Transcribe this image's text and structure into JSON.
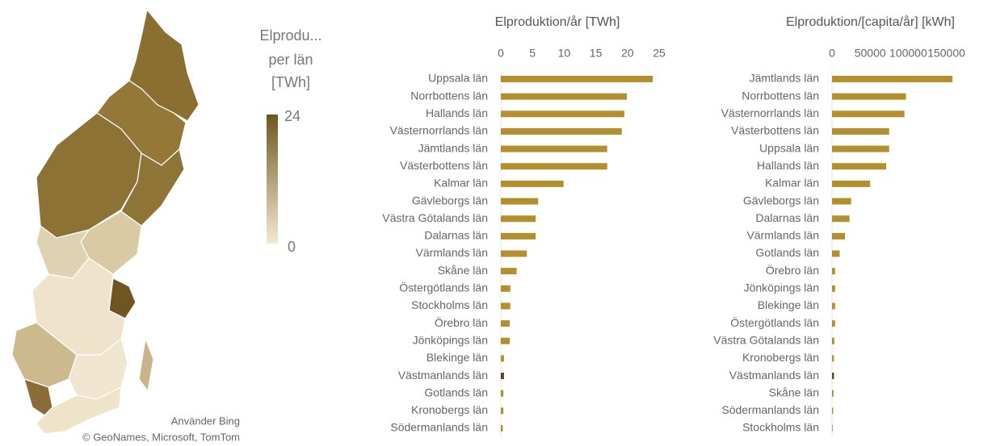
{
  "map": {
    "legend_title": [
      "Elprodu...",
      "per län",
      "[TWh]"
    ],
    "legend_max": 24,
    "legend_min": 0,
    "attribution": [
      "Använder Bing",
      "© GeoNames, Microsoft, TomTom"
    ]
  },
  "chart_data": [
    {
      "type": "hbar",
      "title": "Elproduktion/år [TWh]",
      "categories": [
        "Uppsala län",
        "Norrbottens län",
        "Hallands län",
        "Västernorrlands län",
        "Jämtlands län",
        "Västerbottens län",
        "Kalmar län",
        "Gävleborgs län",
        "Västra Götalands län",
        "Dalarnas län",
        "Värmlands län",
        "Skåne län",
        "Östergötlands län",
        "Stockholms län",
        "Örebro län",
        "Jönköpings län",
        "Blekinge län",
        "Västmanlands län",
        "Gotlands län",
        "Kronobergs län",
        "Södermanlands län"
      ],
      "values": [
        24.0,
        19.9,
        19.5,
        19.1,
        16.8,
        16.8,
        9.9,
        5.9,
        5.5,
        5.5,
        4.1,
        2.5,
        1.5,
        1.5,
        1.4,
        1.4,
        0.5,
        0.5,
        0.4,
        0.4,
        0.3
      ],
      "color": "#b38f2e",
      "highlight": {
        "category": "Västmanlands län",
        "color": "#5c4816"
      },
      "xlim": [
        0,
        25
      ],
      "xticks": [
        0,
        5,
        10,
        15,
        20,
        25
      ]
    },
    {
      "type": "hbar",
      "title": "Elproduktion/[capita/år] [kWh]",
      "categories": [
        "Jämtlands län",
        "Norrbottens län",
        "Västernorrlands län",
        "Västerbottens län",
        "Uppsala län",
        "Hallands län",
        "Kalmar län",
        "Gävleborgs län",
        "Dalarnas län",
        "Värmlands län",
        "Gotlands län",
        "Örebro län",
        "Jönköpings län",
        "Blekinge län",
        "Östergötlands län",
        "Västra Götalands län",
        "Kronobergs län",
        "Västmanlands län",
        "Skåne län",
        "Södermanlands län",
        "Stockholms län"
      ],
      "values": [
        158000,
        97000,
        95000,
        75000,
        75000,
        71000,
        50000,
        25000,
        23000,
        17000,
        10000,
        4000,
        4000,
        4000,
        4000,
        3000,
        2500,
        2500,
        2000,
        1500,
        300
      ],
      "color": "#b38f2e",
      "highlight": {
        "category": "Västmanlands län",
        "color": "#5c4816"
      },
      "xlim": [
        0,
        160000
      ],
      "xticks": [
        0,
        50000,
        100000,
        150000
      ]
    }
  ]
}
